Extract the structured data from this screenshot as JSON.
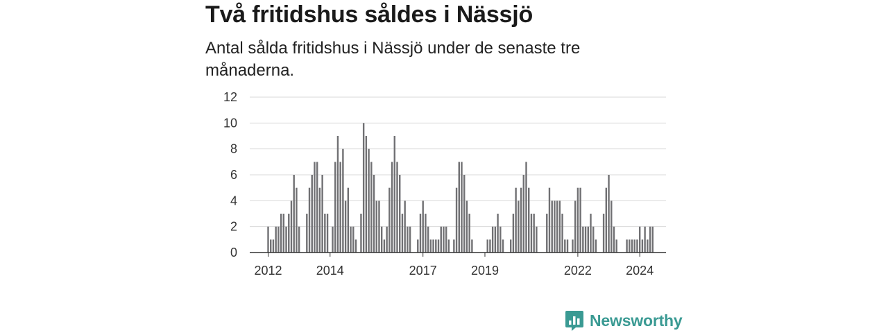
{
  "header": {
    "title": "Två fritidshus såldes i Nässjö",
    "subtitle": "Antal sålda fritidshus i Nässjö under de senaste tre månaderna."
  },
  "colors": {
    "bar": "#707073",
    "highlight": "#2a9d96",
    "grid": "#d9d9d9",
    "axis": "#333333",
    "brand": "#3a9a93"
  },
  "brand": {
    "name": "Newsworthy",
    "icon": "newsworthy-logo-icon"
  },
  "chart_data": {
    "type": "bar",
    "title": "Två fritidshus såldes i Nässjö",
    "subtitle": "Antal sålda fritidshus i Nässjö under de senaste tre månaderna.",
    "xlabel": "",
    "ylabel": "",
    "ylim": [
      0,
      12
    ],
    "y_ticks": [
      0,
      2,
      4,
      6,
      8,
      10,
      12
    ],
    "x_ticks": [
      {
        "label": "2012",
        "index": 0
      },
      {
        "label": "2014",
        "index": 24
      },
      {
        "label": "2017",
        "index": 60
      },
      {
        "label": "2019",
        "index": 84
      },
      {
        "label": "2022",
        "index": 120
      },
      {
        "label": "2024",
        "index": 144
      }
    ],
    "series": [
      {
        "values": [
          2,
          1,
          1,
          2,
          2,
          3,
          3,
          2,
          3,
          4,
          6,
          5,
          2,
          null,
          null,
          3,
          5,
          6,
          7,
          7,
          5,
          6,
          3,
          3,
          null,
          2,
          7,
          9,
          7,
          8,
          4,
          5,
          2,
          2,
          1,
          null,
          3,
          10,
          9,
          8,
          7,
          6,
          4,
          4,
          2,
          1,
          2,
          5,
          7,
          9,
          7,
          6,
          3,
          4,
          2,
          2,
          null,
          null,
          1,
          3,
          4,
          3,
          2,
          1,
          1,
          1,
          1,
          2,
          2,
          2,
          1,
          null,
          1,
          5,
          7,
          7,
          6,
          4,
          3,
          1,
          null,
          null,
          null,
          null,
          null,
          1,
          1,
          2,
          2,
          3,
          2,
          1,
          null,
          null,
          1,
          3,
          5,
          4,
          5,
          6,
          7,
          5,
          3,
          3,
          2,
          null,
          null,
          null,
          3,
          5,
          4,
          4,
          4,
          4,
          3,
          1,
          1,
          null,
          1,
          4,
          5,
          5,
          2,
          2,
          2,
          3,
          2,
          1,
          null,
          null,
          3,
          5,
          6,
          4,
          2,
          1,
          null,
          null,
          null,
          1,
          1,
          1,
          1,
          1,
          2,
          1,
          2,
          1,
          2,
          2
        ]
      }
    ],
    "highlight": {
      "index": 155,
      "label": "2"
    },
    "grid": true,
    "legend": "none"
  }
}
